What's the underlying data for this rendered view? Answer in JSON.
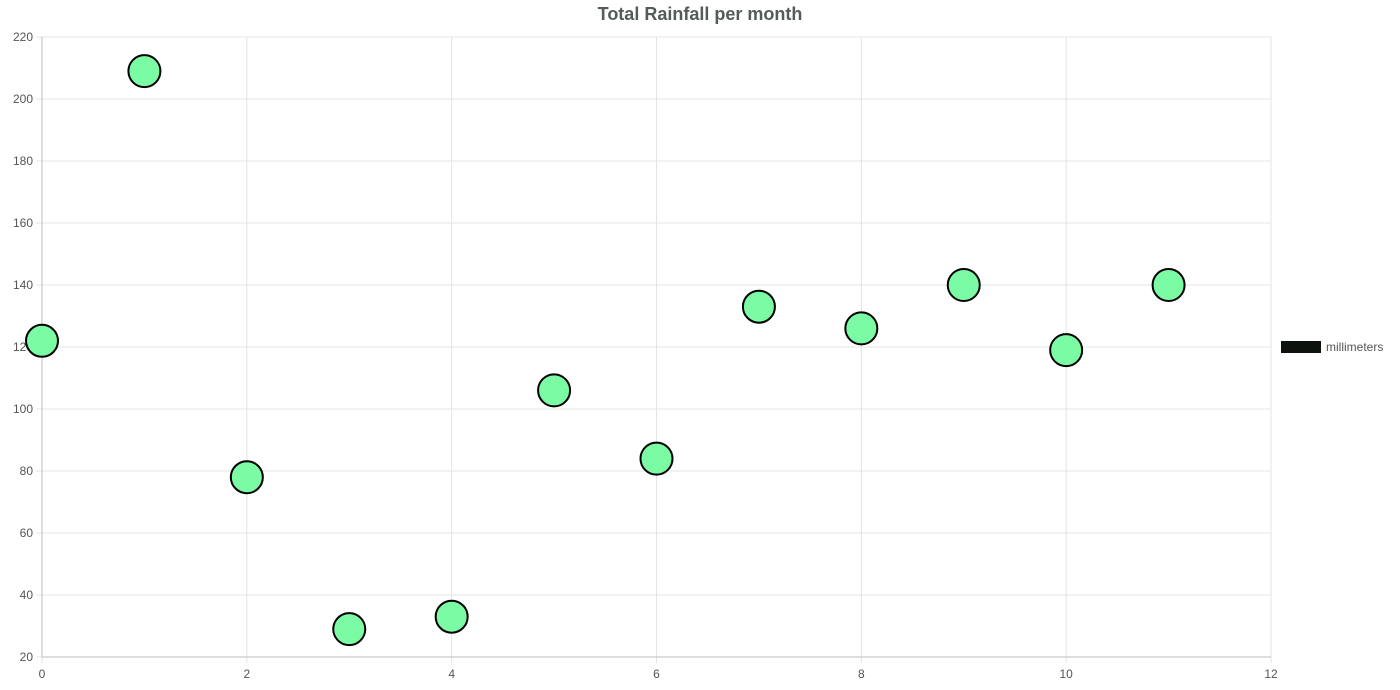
{
  "chart_data": {
    "type": "scatter",
    "title": "Total Rainfall per month",
    "xlabel": "",
    "ylabel": "",
    "xlim": [
      0,
      12
    ],
    "ylim": [
      20,
      220
    ],
    "xticks": [
      0,
      2,
      4,
      6,
      8,
      10,
      12
    ],
    "yticks": [
      20,
      40,
      60,
      80,
      100,
      120,
      140,
      160,
      180,
      200,
      220
    ],
    "grid": true,
    "legend_position": "right",
    "series": [
      {
        "name": "millimeters",
        "color": "#7bfba3",
        "border_color": "#000000",
        "points": [
          {
            "x": 0,
            "y": 122
          },
          {
            "x": 1,
            "y": 209
          },
          {
            "x": 2,
            "y": 78
          },
          {
            "x": 3,
            "y": 29
          },
          {
            "x": 4,
            "y": 33
          },
          {
            "x": 5,
            "y": 106
          },
          {
            "x": 6,
            "y": 84
          },
          {
            "x": 7,
            "y": 133
          },
          {
            "x": 8,
            "y": 126
          },
          {
            "x": 9,
            "y": 140
          },
          {
            "x": 10,
            "y": 119
          },
          {
            "x": 11,
            "y": 140
          }
        ]
      }
    ]
  }
}
